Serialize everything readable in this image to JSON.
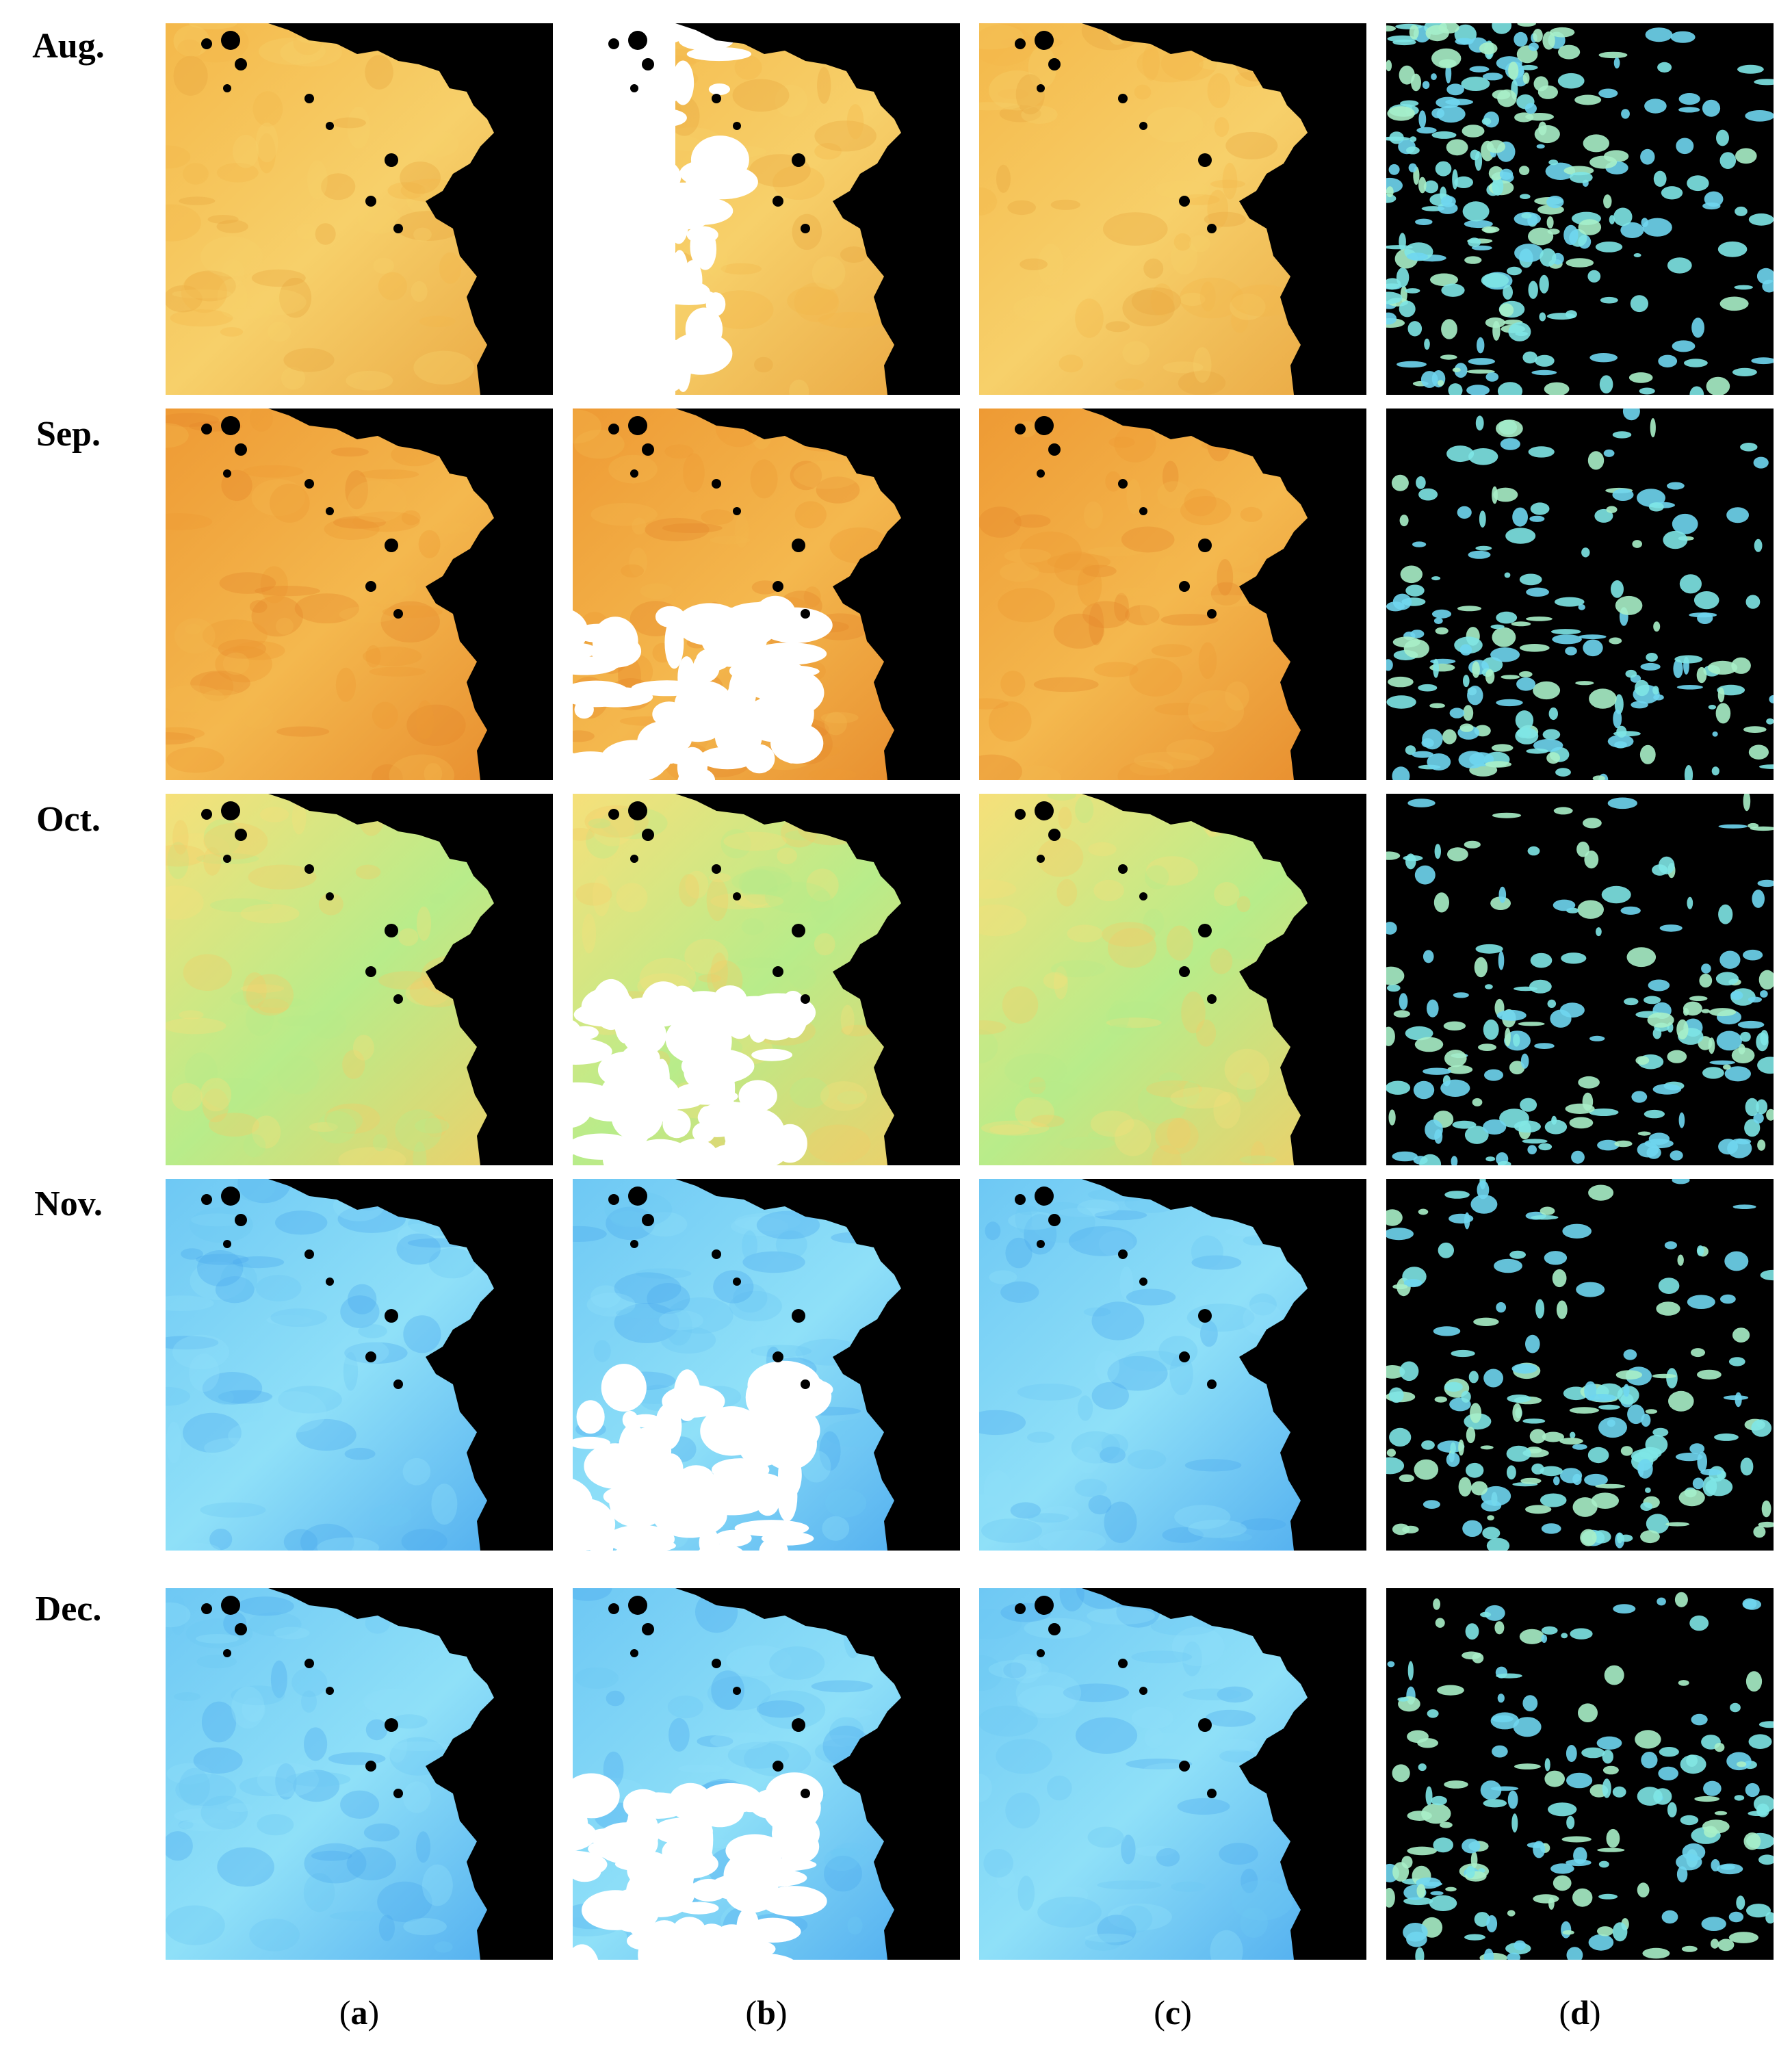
{
  "rows": [
    {
      "label": "Aug.",
      "panels": [
        {
          "theme": "warm-orange"
        },
        {
          "theme": "warm-orange-cloud"
        },
        {
          "theme": "warm-orange"
        },
        {
          "theme": "sparse-cyan"
        }
      ]
    },
    {
      "label": "Sep.",
      "panels": [
        {
          "theme": "deep-orange"
        },
        {
          "theme": "deep-orange-cloud"
        },
        {
          "theme": "deep-orange"
        },
        {
          "theme": "sparse-cyan"
        }
      ]
    },
    {
      "label": "Oct.",
      "panels": [
        {
          "theme": "yellow-green"
        },
        {
          "theme": "yellow-green-cloud"
        },
        {
          "theme": "yellow-green"
        },
        {
          "theme": "sparse-cyan"
        }
      ]
    },
    {
      "label": "Nov.",
      "panels": [
        {
          "theme": "light-blue"
        },
        {
          "theme": "light-blue-cloud"
        },
        {
          "theme": "light-blue"
        },
        {
          "theme": "sparse-cyan"
        }
      ]
    },
    {
      "label": "Dec.",
      "panels": [
        {
          "theme": "light-blue"
        },
        {
          "theme": "light-blue-cloud"
        },
        {
          "theme": "light-blue"
        },
        {
          "theme": "sparse-cyan"
        }
      ]
    }
  ],
  "columns": [
    {
      "letter": "a"
    },
    {
      "letter": "b"
    },
    {
      "letter": "c"
    },
    {
      "letter": "d"
    }
  ],
  "colors": {
    "warm-orange": [
      "#f4b84a",
      "#f7d06a",
      "#e9a540"
    ],
    "deep-orange": [
      "#ee9a34",
      "#f4b84e",
      "#e6882a"
    ],
    "yellow-green": [
      "#f6e07a",
      "#b8ec8a",
      "#f3cc66"
    ],
    "light-blue": [
      "#6ec8f4",
      "#8fe0f8",
      "#4aa8ee"
    ],
    "sparse-cyan": [
      "#7ee6e6",
      "#6fd6f0",
      "#a8f0c8"
    ],
    "land": "#000000",
    "cloud": "#ffffff"
  }
}
